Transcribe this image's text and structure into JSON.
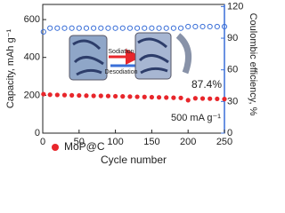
{
  "chart_data": {
    "type": "scatter",
    "x_label": "Cycle number",
    "y_label": "Capacity, mAh g⁻¹",
    "y2_label": "Coulombic efficiency, %",
    "x": [
      1,
      10,
      20,
      30,
      40,
      50,
      60,
      70,
      80,
      90,
      100,
      110,
      120,
      130,
      140,
      150,
      160,
      170,
      180,
      190,
      200,
      210,
      220,
      230,
      240,
      250
    ],
    "series": [
      {
        "name": "MoP@C",
        "color": "#e8262b",
        "values": [
          206,
          203,
          202,
          201,
          200,
          199,
          198,
          197,
          197,
          196,
          195,
          194,
          193,
          192,
          191,
          190,
          189,
          188,
          187,
          186,
          174,
          184,
          183,
          182,
          181,
          180
        ]
      },
      {
        "color": "#3a6fd8",
        "axis": "y2",
        "values": [
          96,
          99.5,
          99.5,
          99.5,
          99.5,
          99.5,
          99.5,
          99.5,
          99.5,
          99.5,
          99.5,
          99.5,
          99.5,
          99.5,
          99.5,
          99.5,
          99.5,
          99.5,
          99.5,
          99.5,
          101,
          101,
          101,
          101,
          101,
          101
        ]
      }
    ],
    "xlim": [
      0,
      250
    ],
    "xticks": [
      0,
      50,
      100,
      150,
      200,
      250
    ],
    "ylim": [
      0,
      680
    ],
    "yticks": [
      0,
      200,
      400,
      600
    ],
    "y2lim": [
      0,
      122
    ],
    "y2ticks": [
      0,
      30,
      60,
      90,
      120
    ],
    "annotations": {
      "retention": "87.4%",
      "rate": "500 mA g⁻¹",
      "sodiation": "Sodiation",
      "desodiation": "Desodiation"
    }
  }
}
